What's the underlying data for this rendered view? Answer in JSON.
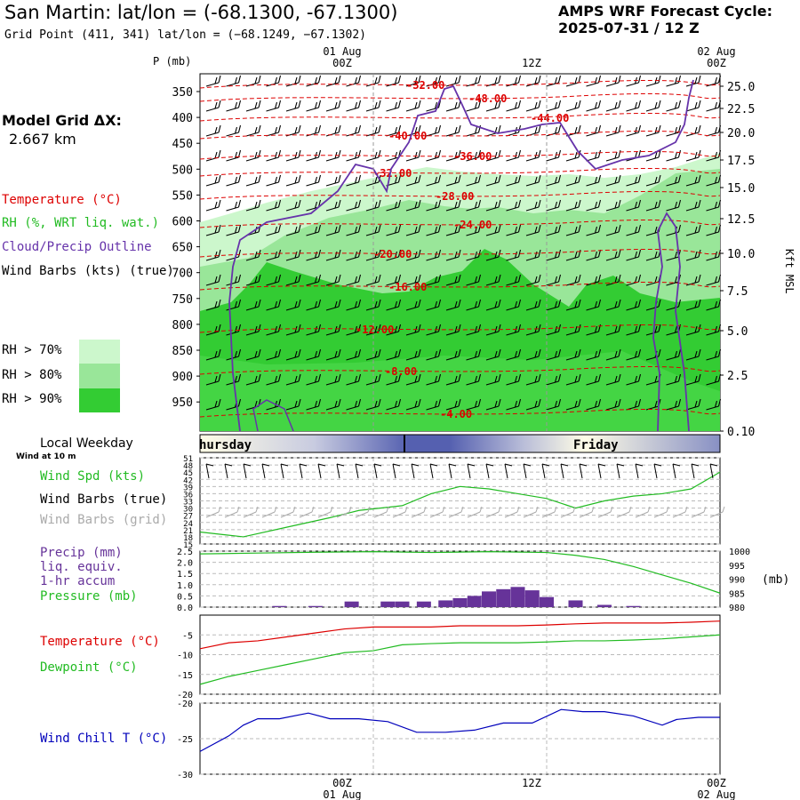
{
  "header": {
    "title": "San Martin:  lat/lon = (-68.1300, -67.1300)",
    "subtitle": "Grid Point (411, 341) lat/lon = (−68.1249, −67.1302)",
    "cycle_line1": "AMPS WRF Forecast Cycle:",
    "cycle_line2": "2025-07-31 / 12  Z"
  },
  "colors": {
    "temperature": "#dd0000",
    "rh": "#22bb22",
    "rh70": "#ccf7cc",
    "rh80": "#99e699",
    "rh90": "#33cc33",
    "cloud": "#6633aa",
    "precip": "#663399",
    "windchill": "#0000bb",
    "wind_grid": "#aaaaaa"
  },
  "left_legend": {
    "model_grid_label": "Model Grid ΔX:",
    "model_grid_value": "2.667 km",
    "temperature": "Temperature (°C)",
    "rh": "RH (%, WRT liq. wat.)",
    "cloud": "Cloud/Precip Outline",
    "wind_barbs": "Wind Barbs (kts) (true)",
    "rh70": "RH > 70%",
    "rh80": "RH > 80%",
    "rh90": "RH > 90%"
  },
  "time_axis": {
    "top_labels": [
      {
        "date": "01 Aug",
        "time": "00Z"
      },
      {
        "date": "",
        "time": "12Z"
      },
      {
        "date": "02 Aug",
        "time": "00Z"
      }
    ],
    "p_label": "P (mb)"
  },
  "weekday_bar": {
    "label": "Local Weekday",
    "left_day": "hursday",
    "right_day": "Friday"
  },
  "wind_panel": {
    "label_small": "Wind at 10 m",
    "wind_spd": "Wind Spd (kts)",
    "barbs_true": "Wind Barbs (true)",
    "barbs_grid": "Wind Barbs (grid)"
  },
  "precip_panel": {
    "precip_line1": "Precip (mm)",
    "precip_line2": "liq. equiv.",
    "precip_line3": "1-hr accum",
    "pressure": "Pressure (mb)",
    "mb_unit": "(mb)"
  },
  "temp_panel": {
    "temperature": "Temperature (°C)",
    "dewpoint": "Dewpoint (°C)"
  },
  "windchill_panel": {
    "label": "Wind Chill T (°C)"
  },
  "bottom_axis": {
    "labels": [
      {
        "time": "00Z",
        "date": "01 Aug"
      },
      {
        "time": "12Z",
        "date": ""
      },
      {
        "time": "00Z",
        "date": "02 Aug"
      }
    ]
  },
  "chart_data": [
    {
      "type": "heatmap",
      "name": "sounding",
      "x_hours": [
        0,
        36
      ],
      "pressure_ticks": [
        350,
        400,
        450,
        500,
        550,
        600,
        650,
        700,
        750,
        800,
        850,
        900,
        950
      ],
      "height_ticks_kft": [
        "25.0",
        "22.5",
        "20.0",
        "17.5",
        "15.0",
        "12.5",
        "10.0",
        "7.5",
        "5.0",
        "2.5",
        "0.10"
      ],
      "height_axis_label": "Kft MSL",
      "temperature_contours": [
        {
          "label": "-32.00"
        },
        {
          "label": "-48.00"
        },
        {
          "label": "-44.00"
        },
        {
          "label": "-40.00"
        },
        {
          "label": "-36.00"
        },
        {
          "label": "-32.00"
        },
        {
          "label": "-28.00"
        },
        {
          "label": "-24.00"
        },
        {
          "label": "-20.00"
        },
        {
          "label": "-16.00"
        },
        {
          "label": "-12.00"
        },
        {
          "label": "-8.00"
        },
        {
          "label": "-4.00"
        }
      ]
    },
    {
      "type": "line",
      "name": "wind_speed",
      "y_ticks": [
        "51",
        "48",
        "45",
        "42",
        "39",
        "36",
        "33",
        "30",
        "27",
        "24",
        "21",
        "18",
        "15"
      ],
      "ylim": [
        15,
        51
      ],
      "x": [
        0,
        1.5,
        3,
        6,
        9,
        11,
        14,
        16,
        18,
        20,
        22,
        24,
        26,
        28,
        30,
        32,
        34,
        36
      ],
      "values": [
        20,
        19,
        18,
        22,
        26,
        29,
        31,
        36,
        39,
        38,
        36,
        34,
        30,
        33,
        35,
        36,
        38,
        45
      ]
    },
    {
      "type": "bar",
      "name": "precip_pressure",
      "precip_ticks": [
        "2.5",
        "2.0",
        "1.5",
        "1.0",
        "0.5",
        "0.0"
      ],
      "pressure_ticks": [
        "1000",
        "995",
        "990",
        "985",
        "980"
      ],
      "precip_ylim": [
        0,
        2.5
      ],
      "pressure_ylim": [
        980,
        1000
      ],
      "precip_x": [
        5.5,
        8,
        10.5,
        13,
        14,
        15.5,
        17,
        18,
        19,
        20,
        21,
        22,
        23,
        24,
        26,
        28,
        30
      ],
      "precip_values": [
        0.05,
        0.05,
        0.25,
        0.25,
        0.25,
        0.25,
        0.3,
        0.4,
        0.5,
        0.7,
        0.8,
        0.9,
        0.75,
        0.45,
        0.3,
        0.1,
        0.05
      ],
      "pressure_x": [
        0,
        4,
        8,
        12,
        16,
        20,
        24,
        26,
        28,
        30,
        32,
        34,
        36
      ],
      "pressure_values": [
        999.0,
        999.3,
        999.6,
        999.8,
        999.5,
        999.8,
        999.5,
        998.5,
        997.0,
        994.5,
        991.5,
        988.5,
        985.0
      ]
    },
    {
      "type": "line",
      "name": "temperature_dewpoint",
      "y_ticks": [
        "-5",
        "-10",
        "-15",
        "-20"
      ],
      "ylim": [
        -20,
        0
      ],
      "x": [
        0,
        2,
        4,
        6,
        8,
        10,
        12,
        14,
        16,
        18,
        20,
        22,
        24,
        26,
        28,
        30,
        32,
        34,
        36
      ],
      "series": [
        {
          "name": "Temperature",
          "values": [
            -8.5,
            -7,
            -6.5,
            -5.5,
            -4.5,
            -3.5,
            -3,
            -3,
            -3,
            -2.7,
            -2.7,
            -2.7,
            -2.5,
            -2.2,
            -2,
            -2,
            -2,
            -1.8,
            -1.5
          ]
        },
        {
          "name": "Dewpoint",
          "values": [
            -17.5,
            -15.5,
            -14,
            -12.5,
            -11,
            -9.5,
            -9,
            -7.5,
            -7.2,
            -7,
            -7,
            -7,
            -6.8,
            -6.5,
            -6.5,
            -6.3,
            -6,
            -5.5,
            -5
          ]
        }
      ]
    },
    {
      "type": "line",
      "name": "wind_chill",
      "y_ticks": [
        "-20",
        "-25",
        "-30"
      ],
      "ylim": [
        -30,
        -20
      ],
      "x": [
        0,
        2,
        3,
        4,
        5.5,
        7.5,
        9,
        11,
        13,
        15,
        17,
        19,
        21,
        23,
        25,
        26.5,
        28,
        30,
        32,
        33,
        34.5,
        36
      ],
      "values": [
        -26.8,
        -24.6,
        -23.1,
        -22.2,
        -22.2,
        -21.4,
        -22.2,
        -22.2,
        -22.6,
        -24.1,
        -24.1,
        -23.8,
        -22.8,
        -22.8,
        -20.9,
        -21.2,
        -21.2,
        -21.8,
        -23.1,
        -22.3,
        -22.0,
        -22.0
      ]
    }
  ]
}
